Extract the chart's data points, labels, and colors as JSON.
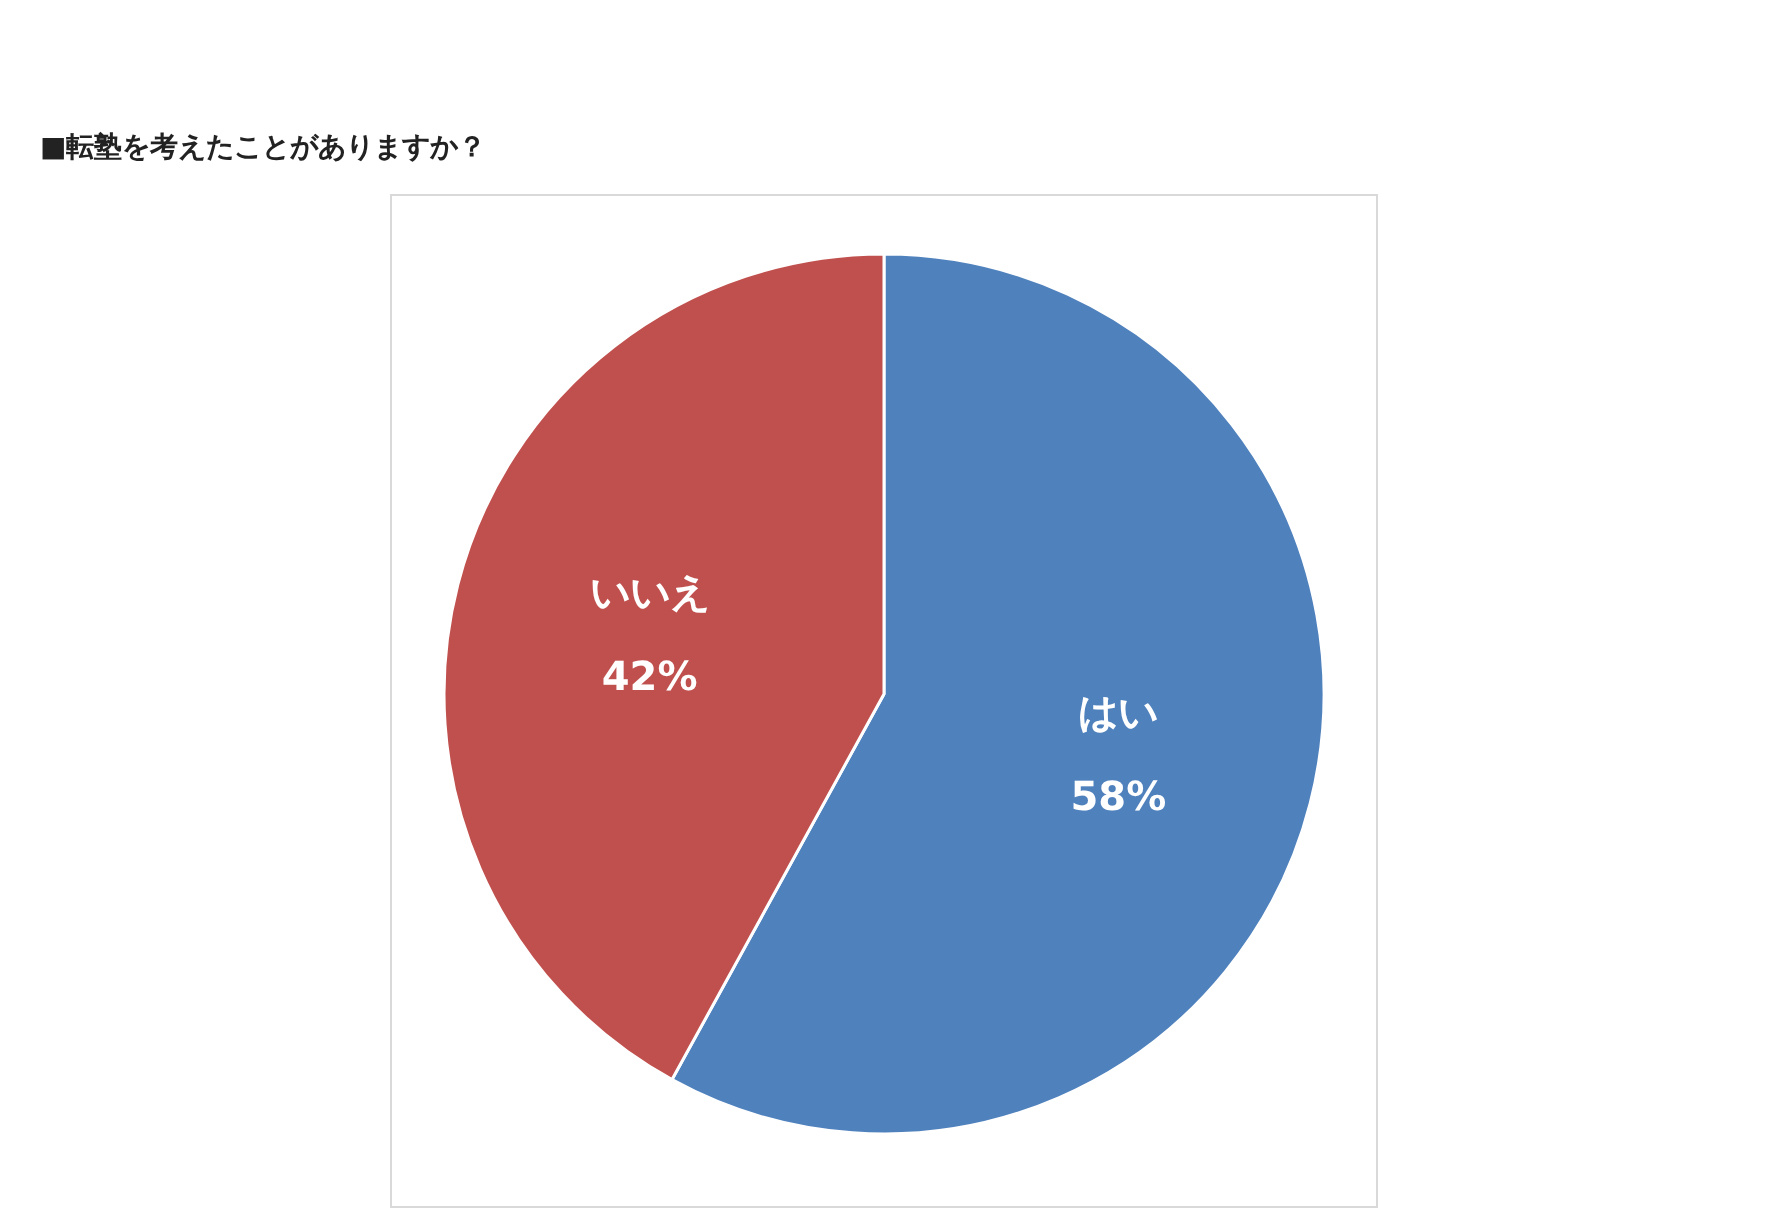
{
  "chart_data": {
    "type": "pie",
    "title": "■転塾を考えたことがありますか？",
    "categories": [
      "はい",
      "いいえ"
    ],
    "values": [
      58,
      42
    ],
    "colors": [
      "#4f81bd",
      "#c0504d"
    ],
    "value_labels": [
      "58%",
      "42%"
    ],
    "legend": false
  }
}
